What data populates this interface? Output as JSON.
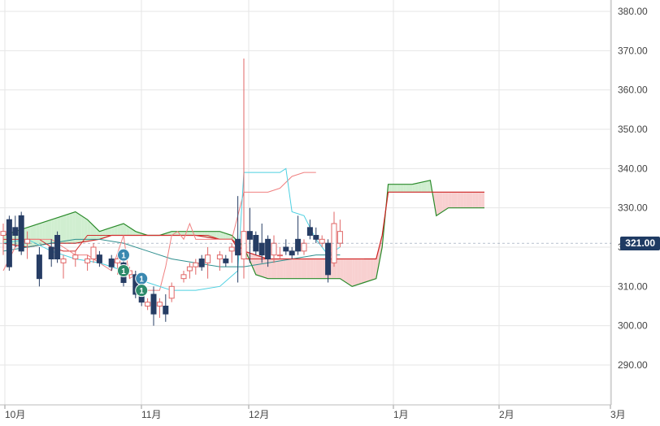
{
  "chart_data": {
    "type": "candlestick",
    "y_ticks": [
      "380.00",
      "370.00",
      "360.00",
      "350.00",
      "340.00",
      "330.00",
      "320.00",
      "310.00",
      "300.00",
      "290.00"
    ],
    "x_ticks": [
      "10月",
      "11月",
      "12月",
      "1月",
      "2月",
      "3月"
    ],
    "ylim": [
      281,
      385
    ],
    "current_price": "321.00",
    "grid": true,
    "colors": {
      "up": "#ffffff",
      "down": "#263d64",
      "tenkan": "#f08080",
      "kijun": "#d32f2f",
      "chikou": "#4dd0e1",
      "ma": "#2f8f8f",
      "cloud_up": "#c8ebc8",
      "cloud_down": "#f7c8c8",
      "span_a": "#cc2222",
      "span_b": "#2a8a2a",
      "badge": "#1f3b63",
      "marker_blue": "#3a88b0",
      "marker_green": "#2e8b6b"
    },
    "candles": [
      {
        "t": 0,
        "o": 323,
        "h": 326,
        "l": 318,
        "c": 324
      },
      {
        "t": 0.5,
        "o": 327,
        "h": 328,
        "l": 314,
        "c": 315
      },
      {
        "t": 1,
        "o": 325,
        "h": 328,
        "l": 320,
        "c": 323
      },
      {
        "t": 1.5,
        "o": 328,
        "h": 329,
        "l": 318,
        "c": 319
      },
      {
        "t": 2,
        "o": 321,
        "h": 324,
        "l": 317,
        "c": 322
      },
      {
        "t": 3,
        "o": 318,
        "h": 320,
        "l": 310,
        "c": 312
      },
      {
        "t": 4,
        "o": 320,
        "h": 322,
        "l": 315,
        "c": 317
      },
      {
        "t": 4.5,
        "o": 323,
        "h": 324,
        "l": 316,
        "c": 317
      },
      {
        "t": 5,
        "o": 316,
        "h": 318,
        "l": 312,
        "c": 317
      },
      {
        "t": 6,
        "o": 317,
        "h": 319,
        "l": 315,
        "c": 318
      },
      {
        "t": 7,
        "o": 316,
        "h": 318,
        "l": 314,
        "c": 317
      },
      {
        "t": 7.5,
        "o": 317,
        "h": 321,
        "l": 316,
        "c": 320
      },
      {
        "t": 8,
        "o": 318,
        "h": 319,
        "l": 315,
        "c": 316
      },
      {
        "t": 9,
        "o": 317,
        "h": 318,
        "l": 314,
        "c": 315
      },
      {
        "t": 9.5,
        "o": 316,
        "h": 318,
        "l": 313,
        "c": 317
      },
      {
        "t": 10,
        "o": 316,
        "h": 318,
        "l": 310,
        "c": 311
      },
      {
        "t": 10.5,
        "o": 313,
        "h": 315,
        "l": 312,
        "c": 314
      },
      {
        "t": 11,
        "o": 313,
        "h": 314,
        "l": 307,
        "c": 308
      },
      {
        "t": 11.5,
        "o": 310,
        "h": 311,
        "l": 305,
        "c": 306
      },
      {
        "t": 12,
        "o": 305,
        "h": 307,
        "l": 304,
        "c": 306
      },
      {
        "t": 12.5,
        "o": 308,
        "h": 310,
        "l": 300,
        "c": 303
      },
      {
        "t": 13,
        "o": 305,
        "h": 307,
        "l": 302,
        "c": 306
      },
      {
        "t": 13.5,
        "o": 305,
        "h": 308,
        "l": 301,
        "c": 303
      },
      {
        "t": 14,
        "o": 307,
        "h": 311,
        "l": 306,
        "c": 310
      },
      {
        "t": 15,
        "o": 312,
        "h": 314,
        "l": 311,
        "c": 313
      },
      {
        "t": 15.5,
        "o": 314,
        "h": 316,
        "l": 312,
        "c": 315
      },
      {
        "t": 16,
        "o": 315,
        "h": 317,
        "l": 313,
        "c": 316
      },
      {
        "t": 16.5,
        "o": 317,
        "h": 318,
        "l": 314,
        "c": 315
      },
      {
        "t": 17,
        "o": 316,
        "h": 320,
        "l": 312,
        "c": 318
      },
      {
        "t": 18,
        "o": 317,
        "h": 319,
        "l": 314,
        "c": 318
      },
      {
        "t": 18.5,
        "o": 317,
        "h": 318,
        "l": 315,
        "c": 316
      },
      {
        "t": 19,
        "o": 319,
        "h": 321,
        "l": 316,
        "c": 320
      },
      {
        "t": 19.5,
        "o": 322,
        "h": 333,
        "l": 311,
        "c": 318
      },
      {
        "t": 20,
        "o": 317,
        "h": 368,
        "l": 312,
        "c": 324
      },
      {
        "t": 20.5,
        "o": 324,
        "h": 330,
        "l": 316,
        "c": 322
      },
      {
        "t": 21,
        "o": 323,
        "h": 324,
        "l": 318,
        "c": 319
      },
      {
        "t": 21.5,
        "o": 321,
        "h": 326,
        "l": 316,
        "c": 318
      },
      {
        "t": 22,
        "o": 322,
        "h": 323,
        "l": 315,
        "c": 317
      },
      {
        "t": 22.5,
        "o": 318,
        "h": 323,
        "l": 316,
        "c": 321
      },
      {
        "t": 23,
        "o": 318,
        "h": 320,
        "l": 317,
        "c": 318
      },
      {
        "t": 23.5,
        "o": 320,
        "h": 322,
        "l": 318,
        "c": 319
      },
      {
        "t": 24,
        "o": 319,
        "h": 320,
        "l": 317,
        "c": 318
      },
      {
        "t": 24.5,
        "o": 322,
        "h": 328,
        "l": 318,
        "c": 319
      },
      {
        "t": 25,
        "o": 319,
        "h": 322,
        "l": 318,
        "c": 321
      },
      {
        "t": 25.5,
        "o": 325,
        "h": 327,
        "l": 322,
        "c": 323
      },
      {
        "t": 26,
        "o": 323,
        "h": 325,
        "l": 321,
        "c": 322
      },
      {
        "t": 26.5,
        "o": 321,
        "h": 323,
        "l": 320,
        "c": 322
      },
      {
        "t": 27,
        "o": 321,
        "h": 322,
        "l": 311,
        "c": 313
      },
      {
        "t": 27.5,
        "o": 316,
        "h": 329,
        "l": 315,
        "c": 326
      },
      {
        "t": 28,
        "o": 321,
        "h": 327,
        "l": 320,
        "c": 324
      }
    ],
    "tenkan": [
      [
        0,
        314
      ],
      [
        1,
        320
      ],
      [
        2,
        322
      ],
      [
        3,
        322
      ],
      [
        4,
        322
      ],
      [
        5,
        320
      ],
      [
        6,
        318
      ],
      [
        7,
        318
      ],
      [
        8,
        316
      ],
      [
        9,
        314
      ],
      [
        10,
        323
      ],
      [
        10.5,
        312
      ],
      [
        11,
        313
      ],
      [
        12,
        309
      ],
      [
        13,
        309
      ],
      [
        13.5,
        315
      ],
      [
        14,
        323
      ],
      [
        14.5,
        324
      ],
      [
        15,
        322
      ],
      [
        15.5,
        326
      ],
      [
        16,
        322
      ],
      [
        17,
        322
      ],
      [
        18,
        322
      ],
      [
        19,
        322
      ],
      [
        20,
        334
      ],
      [
        21,
        334
      ],
      [
        22,
        334
      ],
      [
        23,
        335
      ],
      [
        24,
        338
      ],
      [
        25,
        339
      ],
      [
        26,
        339
      ]
    ],
    "kijun": [
      [
        0,
        322
      ],
      [
        3,
        322
      ],
      [
        4,
        320
      ],
      [
        5,
        319
      ],
      [
        6,
        319
      ],
      [
        7,
        323
      ],
      [
        10,
        323
      ],
      [
        12,
        323
      ],
      [
        14,
        323
      ],
      [
        17,
        323
      ],
      [
        18,
        322
      ],
      [
        19,
        322
      ],
      [
        20,
        317
      ],
      [
        22,
        317
      ],
      [
        25,
        317
      ],
      [
        26,
        317
      ],
      [
        27,
        317
      ],
      [
        28,
        317
      ],
      [
        29,
        317
      ],
      [
        30,
        317
      ]
    ],
    "chikou": [
      [
        0,
        321
      ],
      [
        2,
        322
      ],
      [
        4,
        319
      ],
      [
        6,
        317
      ],
      [
        8,
        316
      ],
      [
        10,
        314
      ],
      [
        12,
        311
      ],
      [
        14,
        309
      ],
      [
        16,
        309
      ],
      [
        18,
        310
      ],
      [
        19.5,
        314
      ],
      [
        20,
        339
      ],
      [
        22,
        339
      ],
      [
        23,
        339
      ],
      [
        23.5,
        340
      ],
      [
        24,
        329
      ],
      [
        25,
        328
      ],
      [
        26,
        322
      ],
      [
        27,
        318
      ],
      [
        28,
        320
      ]
    ],
    "ma": [
      [
        0,
        319
      ],
      [
        2,
        320
      ],
      [
        4,
        321
      ],
      [
        6,
        322
      ],
      [
        8,
        322
      ],
      [
        10,
        321
      ],
      [
        12,
        319
      ],
      [
        14,
        317
      ],
      [
        16,
        316
      ],
      [
        18,
        315
      ],
      [
        20,
        315
      ],
      [
        22,
        316
      ],
      [
        24,
        317
      ],
      [
        26,
        318
      ],
      [
        28,
        318
      ]
    ],
    "span_a": [
      [
        0,
        321
      ],
      [
        2,
        320
      ],
      [
        4,
        321
      ],
      [
        6,
        321
      ],
      [
        8,
        322
      ],
      [
        9,
        323
      ],
      [
        10,
        323
      ],
      [
        12,
        323
      ],
      [
        14,
        323
      ],
      [
        16,
        323
      ],
      [
        18,
        322
      ],
      [
        19,
        322
      ],
      [
        20,
        319
      ],
      [
        21,
        318
      ],
      [
        22,
        317
      ],
      [
        24,
        317
      ],
      [
        26,
        317
      ],
      [
        28,
        317
      ],
      [
        30,
        317
      ],
      [
        31,
        317
      ],
      [
        31.5,
        323
      ],
      [
        32,
        334
      ],
      [
        34,
        334
      ],
      [
        36,
        334
      ],
      [
        37,
        334
      ],
      [
        38,
        334
      ],
      [
        40,
        334
      ]
    ],
    "span_b": [
      [
        0,
        323
      ],
      [
        2,
        325
      ],
      [
        4,
        327
      ],
      [
        6,
        329
      ],
      [
        7,
        327
      ],
      [
        8,
        324
      ],
      [
        9,
        325
      ],
      [
        10,
        326
      ],
      [
        11,
        324
      ],
      [
        12,
        323
      ],
      [
        13,
        323
      ],
      [
        14,
        324
      ],
      [
        16,
        324
      ],
      [
        18,
        324
      ],
      [
        19,
        323
      ],
      [
        20,
        320
      ],
      [
        21,
        313
      ],
      [
        22,
        312
      ],
      [
        24,
        312
      ],
      [
        26,
        312
      ],
      [
        27,
        312
      ],
      [
        28,
        312
      ],
      [
        29,
        310
      ],
      [
        30,
        311
      ],
      [
        31,
        312
      ],
      [
        31.5,
        320
      ],
      [
        32,
        336
      ],
      [
        34,
        336
      ],
      [
        35.5,
        337
      ],
      [
        36,
        328
      ],
      [
        37,
        330
      ],
      [
        38,
        330
      ],
      [
        40,
        330
      ]
    ],
    "markers": [
      {
        "t": 10,
        "price": 318,
        "label": "1",
        "color": "blue"
      },
      {
        "t": 10,
        "price": 314,
        "label": "1",
        "color": "green"
      },
      {
        "t": 11.5,
        "price": 312,
        "label": "1",
        "color": "blue"
      },
      {
        "t": 11.5,
        "price": 309,
        "label": "1",
        "color": "green"
      }
    ]
  }
}
